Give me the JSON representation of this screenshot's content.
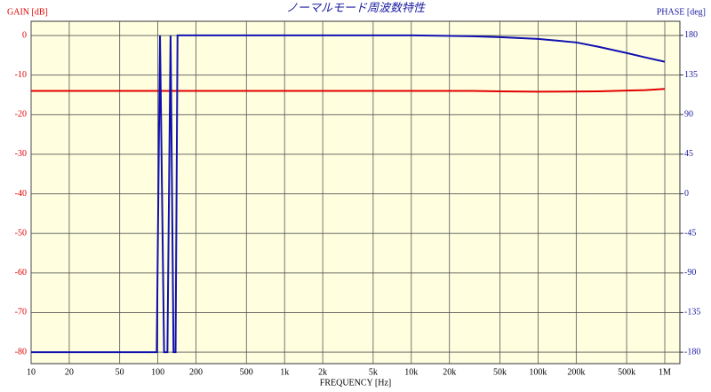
{
  "chart_data": {
    "type": "line",
    "title": "ノーマルモード周波数特性",
    "xlabel": "FREQUENCY [Hz]",
    "ylabel": "GAIN [dB]",
    "y2label": "PHASE [deg]",
    "xscale": "log",
    "grid": true,
    "background": "#ffffe0",
    "xlim": [
      10,
      1316000
    ],
    "xticks": [
      10,
      20,
      50,
      100,
      200,
      500,
      {
        "value": 1000,
        "label": "1k"
      },
      {
        "value": 2000,
        "label": "2k"
      },
      {
        "value": 5000,
        "label": "5k"
      },
      {
        "value": 10000,
        "label": "10k"
      },
      {
        "value": 20000,
        "label": "20k"
      },
      {
        "value": 50000,
        "label": "50k"
      },
      {
        "value": 100000,
        "label": "100k"
      },
      {
        "value": 200000,
        "label": "200k"
      },
      {
        "value": 500000,
        "label": "500k"
      },
      {
        "value": 1000000,
        "label": "1M"
      }
    ],
    "ylim": [
      -82.9,
      3.6
    ],
    "yticks": [
      0,
      -10,
      -20,
      -30,
      -40,
      -50,
      -60,
      -70,
      -80
    ],
    "y2lim": [
      -193,
      196
    ],
    "y2ticks": [
      180,
      135,
      90,
      45,
      0,
      -45,
      -90,
      -135,
      -180
    ],
    "ycolor": "#e00000",
    "y2color": "#1a1aa0",
    "series": [
      {
        "color": "#e00000",
        "x": [
          10,
          1000,
          10000,
          30000,
          50000,
          100000,
          300000,
          500000,
          700000,
          1000000
        ],
        "values": [
          -14,
          -14,
          -14,
          -14,
          -14.1,
          -14.2,
          -14.1,
          -13.9,
          -13.8,
          -13.5
        ]
      },
      {
        "color": "#1010b0",
        "axis": "y2",
        "x": [
          10,
          98,
          104,
          112,
          119,
          126,
          133,
          138,
          143,
          1000,
          10000,
          30000,
          50000,
          100000,
          200000,
          300000,
          500000,
          700000,
          1000000
        ],
        "values": [
          -180,
          -180,
          180,
          -180,
          -180,
          180,
          -180,
          -180,
          180,
          180,
          180,
          179,
          178,
          176,
          172,
          167,
          160,
          155,
          150
        ]
      }
    ]
  }
}
